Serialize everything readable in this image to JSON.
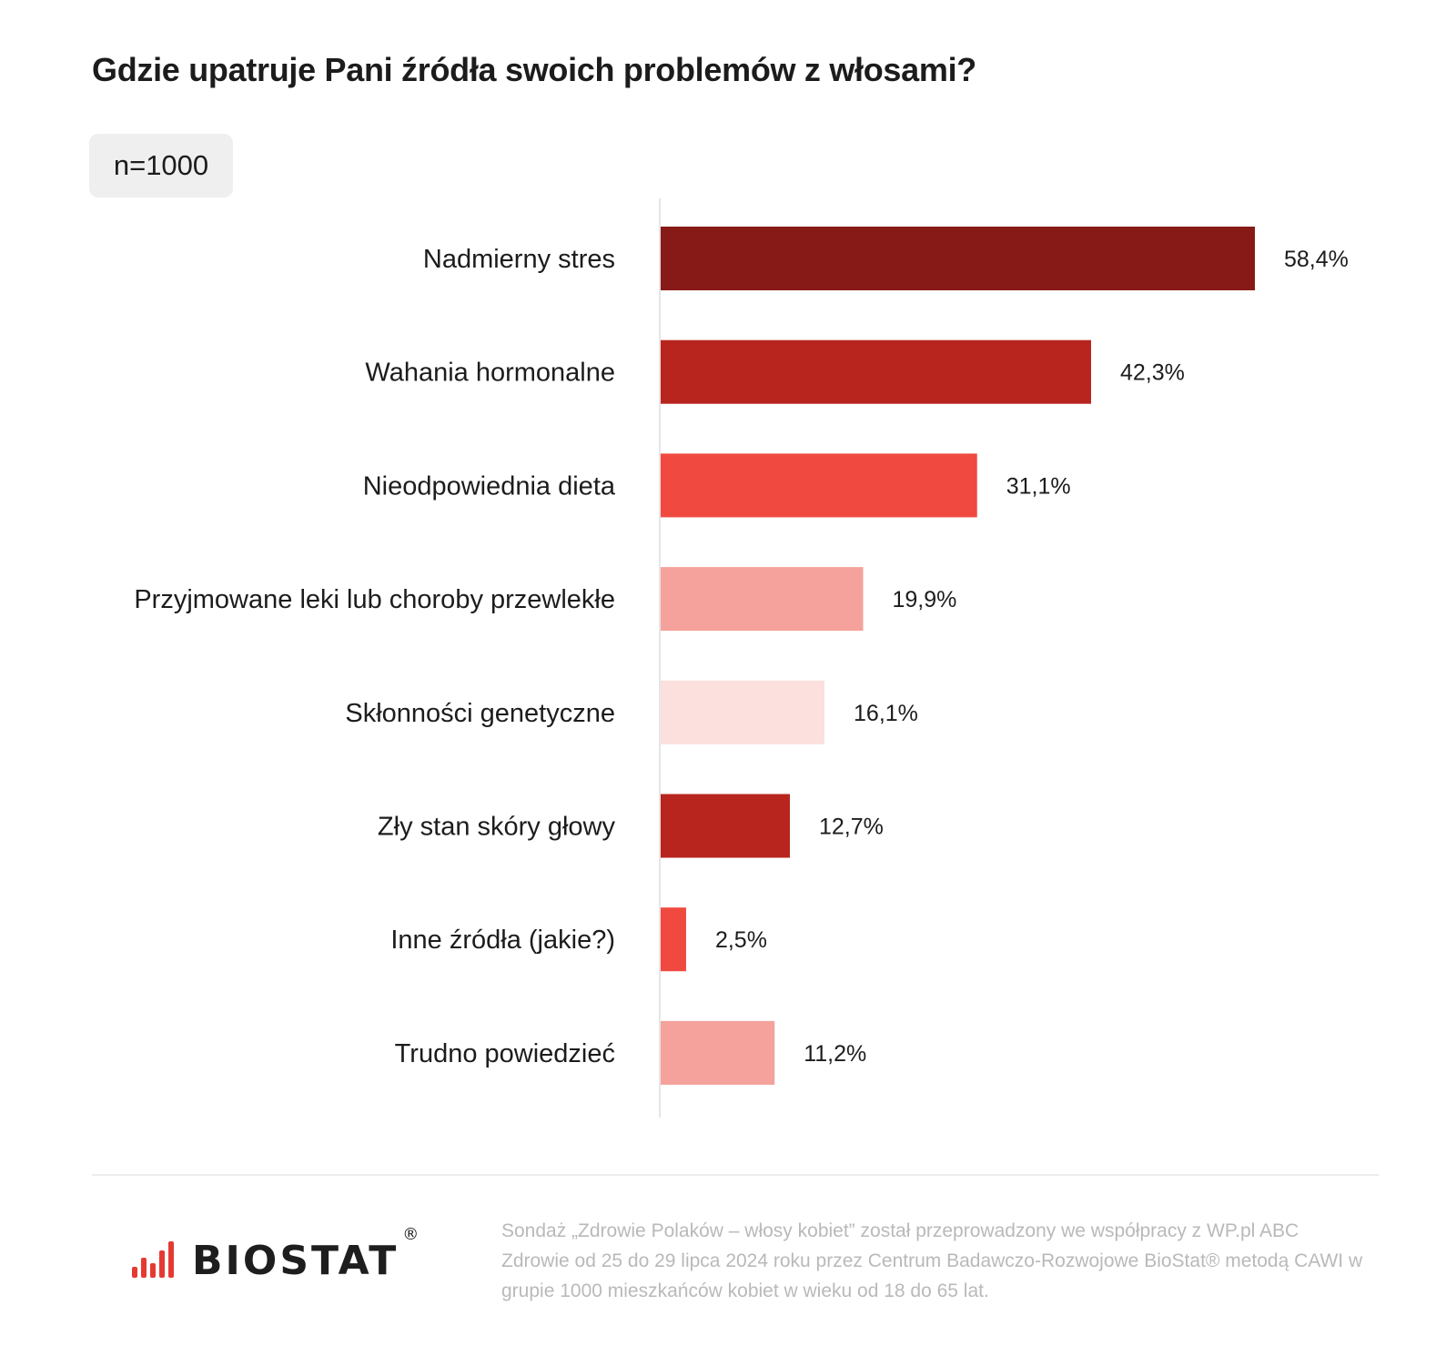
{
  "title": "Gdzie upatruje Pani źródła swoich problemów z włosami?",
  "sample_size": "n=1000",
  "chart_data": {
    "type": "bar",
    "orientation": "horizontal",
    "categories": [
      "Nadmierny stres",
      "Wahania hormonalne",
      "Nieodpowiednia dieta",
      "Przyjmowane leki lub choroby przewlekłe",
      "Skłonności genetyczne",
      "Zły stan skóry głowy",
      "Inne źródła (jakie?)",
      "Trudno powiedzieć"
    ],
    "values": [
      58.4,
      42.3,
      31.1,
      19.9,
      16.1,
      12.7,
      2.5,
      11.2
    ],
    "value_labels": [
      "58,4%",
      "42,3%",
      "31,1%",
      "19,9%",
      "16,1%",
      "12,7%",
      "2,5%",
      "11,2%"
    ],
    "colors": [
      "#871a16",
      "#b8251f",
      "#f04a40",
      "#f5a29c",
      "#fbe0dd",
      "#b8251f",
      "#f04a40",
      "#f5a29c"
    ],
    "unit": "%",
    "xlim": [
      0,
      60
    ]
  },
  "logo": {
    "text": "BIOSTAT",
    "registered": "®"
  },
  "footnote": "Sondaż „Zdrowie Polaków – włosy kobiet” został przeprowadzony we współpracy z WP.pl ABC Zdrowie od 25 do 29 lipca 2024 roku przez Centrum Badawczo-Rozwojowe BioStat® metodą CAWI w grupie 1000 mieszkańców kobiet w wieku od 18 do 65 lat."
}
